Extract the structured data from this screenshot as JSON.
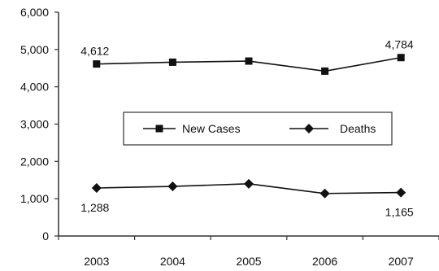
{
  "chart_data": {
    "type": "line",
    "title": "",
    "xlabel": "",
    "ylabel": "",
    "categories": [
      "2003",
      "2004",
      "2005",
      "2006",
      "2007"
    ],
    "ylim": [
      0,
      6000
    ],
    "yticks": [
      0,
      1000,
      2000,
      3000,
      4000,
      5000,
      6000
    ],
    "ytick_labels": [
      "0",
      "1,000",
      "2,000",
      "3,000",
      "4,000",
      "5,000",
      "6,000"
    ],
    "grid": false,
    "legend_position": "center",
    "series": [
      {
        "name": "New Cases",
        "marker": "square",
        "values": [
          4612,
          4660,
          4690,
          4420,
          4784
        ]
      },
      {
        "name": "Deaths",
        "marker": "diamond",
        "values": [
          1288,
          1330,
          1400,
          1140,
          1165
        ]
      }
    ],
    "annotations": [
      {
        "series": 0,
        "index": 0,
        "text": "4,612"
      },
      {
        "series": 0,
        "index": 4,
        "text": "4,784"
      },
      {
        "series": 1,
        "index": 0,
        "text": "1,288"
      },
      {
        "series": 1,
        "index": 4,
        "text": "1,165"
      }
    ]
  }
}
